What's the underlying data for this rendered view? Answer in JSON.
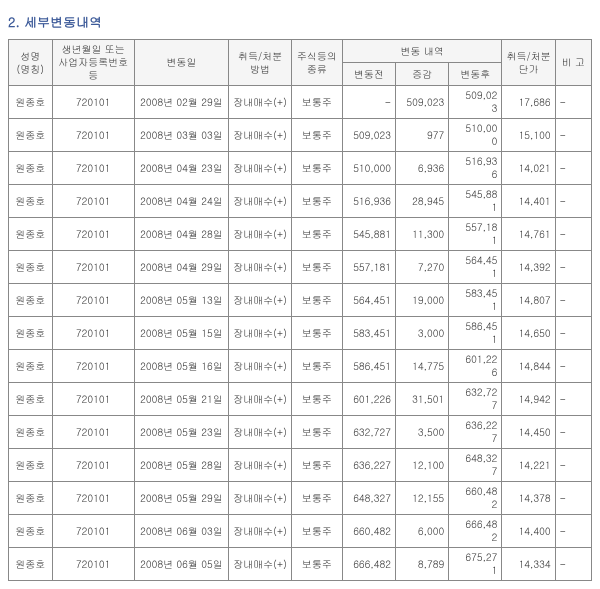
{
  "title": "2. 세부변동내역",
  "headers": {
    "name": "성명\n(명칭)",
    "id": "생년월일 또는\n사업자등록번호 등",
    "date": "변동일",
    "method": "취득/처분\n방법",
    "type": "주식등의\n종류",
    "change_group": "변동 내역",
    "before": "변동전",
    "delta": "증감",
    "after": "변동후",
    "price": "취득/처분\n단가",
    "note": "비 고"
  },
  "rows": [
    {
      "name": "원종호",
      "id": "720101",
      "date": "2008년 02월 29일",
      "method": "장내매수(+)",
      "type": "보통주",
      "before": "-",
      "delta": "509,023",
      "after": "509,02\n3",
      "price": "17,686",
      "note": "-"
    },
    {
      "name": "원종호",
      "id": "720101",
      "date": "2008년 03월 03일",
      "method": "장내매수(+)",
      "type": "보통주",
      "before": "509,023",
      "delta": "977",
      "after": "510,00\n0",
      "price": "15,100",
      "note": "-"
    },
    {
      "name": "원종호",
      "id": "720101",
      "date": "2008년 04월 23일",
      "method": "장내매수(+)",
      "type": "보통주",
      "before": "510,000",
      "delta": "6,936",
      "after": "516,93\n6",
      "price": "14,021",
      "note": "-"
    },
    {
      "name": "원종호",
      "id": "720101",
      "date": "2008년 04월 24일",
      "method": "장내매수(+)",
      "type": "보통주",
      "before": "516,936",
      "delta": "28,945",
      "after": "545,88\n1",
      "price": "14,401",
      "note": "-"
    },
    {
      "name": "원종호",
      "id": "720101",
      "date": "2008년 04월 28일",
      "method": "장내매수(+)",
      "type": "보통주",
      "before": "545,881",
      "delta": "11,300",
      "after": "557,18\n1",
      "price": "14,761",
      "note": "-"
    },
    {
      "name": "원종호",
      "id": "720101",
      "date": "2008년 04월 29일",
      "method": "장내매수(+)",
      "type": "보통주",
      "before": "557,181",
      "delta": "7,270",
      "after": "564,45\n1",
      "price": "14,392",
      "note": "-"
    },
    {
      "name": "원종호",
      "id": "720101",
      "date": "2008년 05월 13일",
      "method": "장내매수(+)",
      "type": "보통주",
      "before": "564,451",
      "delta": "19,000",
      "after": "583,45\n1",
      "price": "14,807",
      "note": "-"
    },
    {
      "name": "원종호",
      "id": "720101",
      "date": "2008년 05월 15일",
      "method": "장내매수(+)",
      "type": "보통주",
      "before": "583,451",
      "delta": "3,000",
      "after": "586,45\n1",
      "price": "14,650",
      "note": "-"
    },
    {
      "name": "원종호",
      "id": "720101",
      "date": "2008년 05월 16일",
      "method": "장내매수(+)",
      "type": "보통주",
      "before": "586,451",
      "delta": "14,775",
      "after": "601,22\n6",
      "price": "14,844",
      "note": "-"
    },
    {
      "name": "원종호",
      "id": "720101",
      "date": "2008년 05월 21일",
      "method": "장내매수(+)",
      "type": "보통주",
      "before": "601,226",
      "delta": "31,501",
      "after": "632,72\n7",
      "price": "14,942",
      "note": "-"
    },
    {
      "name": "원종호",
      "id": "720101",
      "date": "2008년 05월 23일",
      "method": "장내매수(+)",
      "type": "보통주",
      "before": "632,727",
      "delta": "3,500",
      "after": "636,22\n7",
      "price": "14,450",
      "note": "-"
    },
    {
      "name": "원종호",
      "id": "720101",
      "date": "2008년 05월 28일",
      "method": "장내매수(+)",
      "type": "보통주",
      "before": "636,227",
      "delta": "12,100",
      "after": "648,32\n7",
      "price": "14,221",
      "note": "-"
    },
    {
      "name": "원종호",
      "id": "720101",
      "date": "2008년 05월 29일",
      "method": "장내매수(+)",
      "type": "보통주",
      "before": "648,327",
      "delta": "12,155",
      "after": "660,48\n2",
      "price": "14,378",
      "note": "-"
    },
    {
      "name": "원종호",
      "id": "720101",
      "date": "2008년 06월 03일",
      "method": "장내매수(+)",
      "type": "보통주",
      "before": "660,482",
      "delta": "6,000",
      "after": "666,48\n2",
      "price": "14,400",
      "note": "-"
    },
    {
      "name": "원종호",
      "id": "720101",
      "date": "2008년 06월 05일",
      "method": "장내매수(+)",
      "type": "보통주",
      "before": "666,482",
      "delta": "8,789",
      "after": "675,27\n1",
      "price": "14,334",
      "note": "-"
    }
  ]
}
